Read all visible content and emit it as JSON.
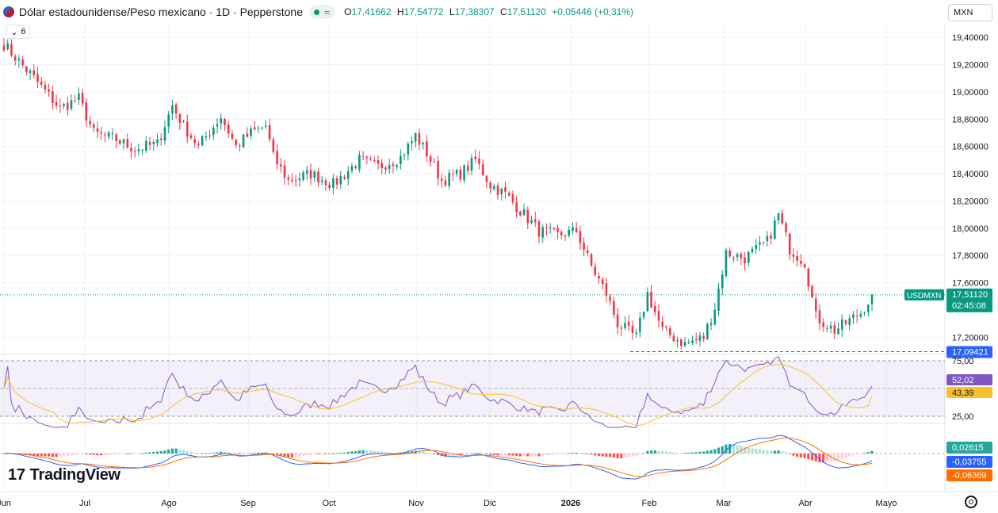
{
  "header": {
    "title": "Dólar estadounidense/Peso mexicano · 1D · Pepperstone",
    "status_icon": "market-open-dot-icon",
    "ohlc": {
      "o_label": "O",
      "o": "17,41662",
      "h_label": "H",
      "h": "17,54772",
      "l_label": "L",
      "l": "17,38307",
      "c_label": "C",
      "c": "17,51120",
      "change": "+0,05446 (+0,31%)"
    }
  },
  "currency_button": "MXN",
  "indicator_toggle": "6",
  "logo": "TradingView",
  "colors": {
    "up": "#089981",
    "down": "#f23645",
    "rsi_line": "#7e57c2",
    "rsi_ma": "#fbc02d",
    "macd_line": "#2962ff",
    "signal_line": "#ff6d00",
    "hist_up_strong": "#26a69a",
    "hist_up_weak": "#b2dfdb",
    "hist_down_strong": "#ff5252",
    "hist_down_weak": "#ffcdd2"
  },
  "chart_data": [
    {
      "type": "candlestick",
      "symbol": "USDMXN",
      "x_axis_labels": [
        "Jun",
        "Jul",
        "Ago",
        "Sep",
        "Oct",
        "Nov",
        "Dic",
        "2026",
        "Feb",
        "Mar",
        "Abr",
        "Mayo"
      ],
      "y_ticks": [
        "19,40000",
        "19,20000",
        "19,00000",
        "18,80000",
        "18,60000",
        "18,40000",
        "18,20000",
        "18,00000",
        "17,80000",
        "17,60000",
        "17,20000"
      ],
      "y_tick_values": [
        19.4,
        19.2,
        19.0,
        18.8,
        18.6,
        18.4,
        18.2,
        18.0,
        17.8,
        17.6,
        17.2
      ],
      "ylim": [
        17.08,
        19.5
      ],
      "current_price": 17.5112,
      "current_label": "USDMXN",
      "current_price_label": "17,51120",
      "countdown": "02:45:08",
      "low_line": 17.09421,
      "low_line_label": "17,09421",
      "close_anchors": [
        [
          0,
          19.35
        ],
        [
          8,
          19.1
        ],
        [
          15,
          18.88
        ],
        [
          20,
          18.95
        ],
        [
          24,
          18.7
        ],
        [
          30,
          18.65
        ],
        [
          35,
          18.58
        ],
        [
          41,
          18.62
        ],
        [
          45,
          18.9
        ],
        [
          48,
          18.75
        ],
        [
          52,
          18.6
        ],
        [
          58,
          18.82
        ],
        [
          62,
          18.6
        ],
        [
          66,
          18.7
        ],
        [
          70,
          18.75
        ],
        [
          72,
          18.52
        ],
        [
          76,
          18.35
        ],
        [
          82,
          18.4
        ],
        [
          88,
          18.32
        ],
        [
          95,
          18.5
        ],
        [
          100,
          18.45
        ],
        [
          106,
          18.52
        ],
        [
          110,
          18.68
        ],
        [
          113,
          18.55
        ],
        [
          117,
          18.35
        ],
        [
          122,
          18.4
        ],
        [
          126,
          18.5
        ],
        [
          130,
          18.32
        ],
        [
          134,
          18.25
        ],
        [
          139,
          18.1
        ],
        [
          143,
          17.98
        ],
        [
          148,
          17.95
        ],
        [
          153,
          17.98
        ],
        [
          157,
          17.72
        ],
        [
          161,
          17.52
        ],
        [
          164,
          17.3
        ],
        [
          169,
          17.2
        ],
        [
          172,
          17.52
        ],
        [
          176,
          17.25
        ],
        [
          182,
          17.15
        ],
        [
          187,
          17.2
        ],
        [
          190,
          17.42
        ],
        [
          193,
          17.82
        ],
        [
          198,
          17.78
        ],
        [
          204,
          17.9
        ],
        [
          207,
          18.1
        ],
        [
          210,
          17.85
        ],
        [
          214,
          17.75
        ],
        [
          217,
          17.35
        ],
        [
          222,
          17.25
        ],
        [
          229,
          17.38
        ],
        [
          232,
          17.5
        ]
      ]
    },
    {
      "type": "line",
      "indicator": "RSI",
      "levels": [
        75,
        50,
        25
      ],
      "level_labels": [
        "75,00",
        "25,00"
      ],
      "ylim": [
        20,
        80
      ],
      "rsi_label": "52,02",
      "ma_label": "43,39",
      "rsi_value": 52.02,
      "ma_value": 43.39
    },
    {
      "type": "bar",
      "indicator": "MACD",
      "histogram_label": "0,02615",
      "macd_label": "-0,03755",
      "signal_label": "-0,06369",
      "histogram_value": 0.02615,
      "macd_value": -0.03755,
      "signal_value": -0.06369
    }
  ]
}
